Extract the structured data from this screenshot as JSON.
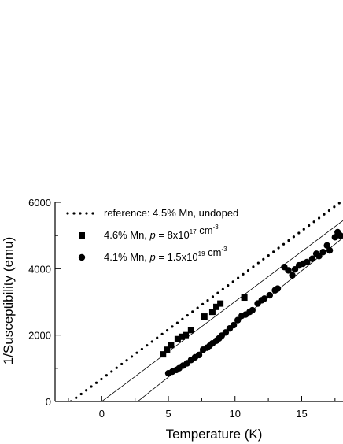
{
  "chart_data": {
    "type": "scatter",
    "xlabel": "Temperature (K)",
    "ylabel": "1/Susceptibility  (emu)",
    "xlim": [
      -3.5,
      18.1
    ],
    "ylim": [
      0,
      6000
    ],
    "x_ticks": [
      0,
      5,
      10,
      15
    ],
    "y_ticks": [
      0,
      2000,
      4000,
      6000
    ],
    "grid": false,
    "legend_position": "top-left",
    "legend": [
      {
        "marker": "dotted-line",
        "parts": [
          {
            "t": "reference: 4.5% Mn, undoped"
          }
        ]
      },
      {
        "marker": "square",
        "parts": [
          {
            "t": "4.6% Mn,  "
          },
          {
            "t": "p",
            "italic": true
          },
          {
            "t": " = 8x10"
          },
          {
            "t": "17",
            "sup": true
          },
          {
            "t": " cm"
          },
          {
            "t": "-3",
            "sup": true
          }
        ]
      },
      {
        "marker": "circle",
        "parts": [
          {
            "t": "4.1% Mn,  "
          },
          {
            "t": "p",
            "italic": true
          },
          {
            "t": " = 1.5x10"
          },
          {
            "t": "19",
            "sup": true
          },
          {
            "t": " cm"
          },
          {
            "t": "-3",
            "sup": true
          }
        ]
      }
    ],
    "series": [
      {
        "marker": "square",
        "points": [
          [
            4.6,
            1420
          ],
          [
            4.9,
            1560
          ],
          [
            5.2,
            1700
          ],
          [
            5.7,
            1880
          ],
          [
            6.0,
            1950
          ],
          [
            6.3,
            2000
          ],
          [
            6.7,
            2150
          ],
          [
            7.7,
            2560
          ],
          [
            8.3,
            2700
          ],
          [
            8.6,
            2850
          ],
          [
            8.9,
            2950
          ],
          [
            10.7,
            3130
          ]
        ]
      },
      {
        "marker": "circle",
        "points": [
          [
            5.0,
            850
          ],
          [
            5.3,
            900
          ],
          [
            5.6,
            950
          ],
          [
            5.8,
            1000
          ],
          [
            6.1,
            1080
          ],
          [
            6.4,
            1150
          ],
          [
            6.7,
            1250
          ],
          [
            7.0,
            1330
          ],
          [
            7.3,
            1400
          ],
          [
            7.6,
            1560
          ],
          [
            7.9,
            1620
          ],
          [
            8.1,
            1680
          ],
          [
            8.3,
            1750
          ],
          [
            8.6,
            1830
          ],
          [
            8.8,
            1900
          ],
          [
            9.0,
            1980
          ],
          [
            9.3,
            2080
          ],
          [
            9.6,
            2200
          ],
          [
            9.9,
            2300
          ],
          [
            10.2,
            2450
          ],
          [
            10.5,
            2580
          ],
          [
            10.8,
            2620
          ],
          [
            11.1,
            2700
          ],
          [
            11.3,
            2750
          ],
          [
            11.7,
            2950
          ],
          [
            12.0,
            3050
          ],
          [
            12.2,
            3100
          ],
          [
            12.6,
            3200
          ],
          [
            13.0,
            3350
          ],
          [
            13.2,
            3400
          ],
          [
            13.7,
            4050
          ],
          [
            14.0,
            3950
          ],
          [
            14.3,
            3800
          ],
          [
            14.5,
            3980
          ],
          [
            14.8,
            4100
          ],
          [
            15.1,
            4150
          ],
          [
            15.4,
            4200
          ],
          [
            15.8,
            4300
          ],
          [
            16.1,
            4450
          ],
          [
            16.3,
            4380
          ],
          [
            16.6,
            4500
          ],
          [
            16.9,
            4700
          ],
          [
            17.1,
            4550
          ],
          [
            17.5,
            4950
          ],
          [
            17.7,
            5100
          ],
          [
            17.9,
            5000
          ]
        ]
      }
    ],
    "lines": [
      {
        "style": "dotted",
        "from": [
          -2.3,
          0
        ],
        "to": [
          17.9,
          6000
        ]
      },
      {
        "style": "solid",
        "from": [
          0,
          0
        ],
        "to": [
          18.1,
          5450
        ]
      },
      {
        "style": "solid",
        "from": [
          2.7,
          0
        ],
        "to": [
          18.1,
          4930
        ]
      }
    ]
  }
}
